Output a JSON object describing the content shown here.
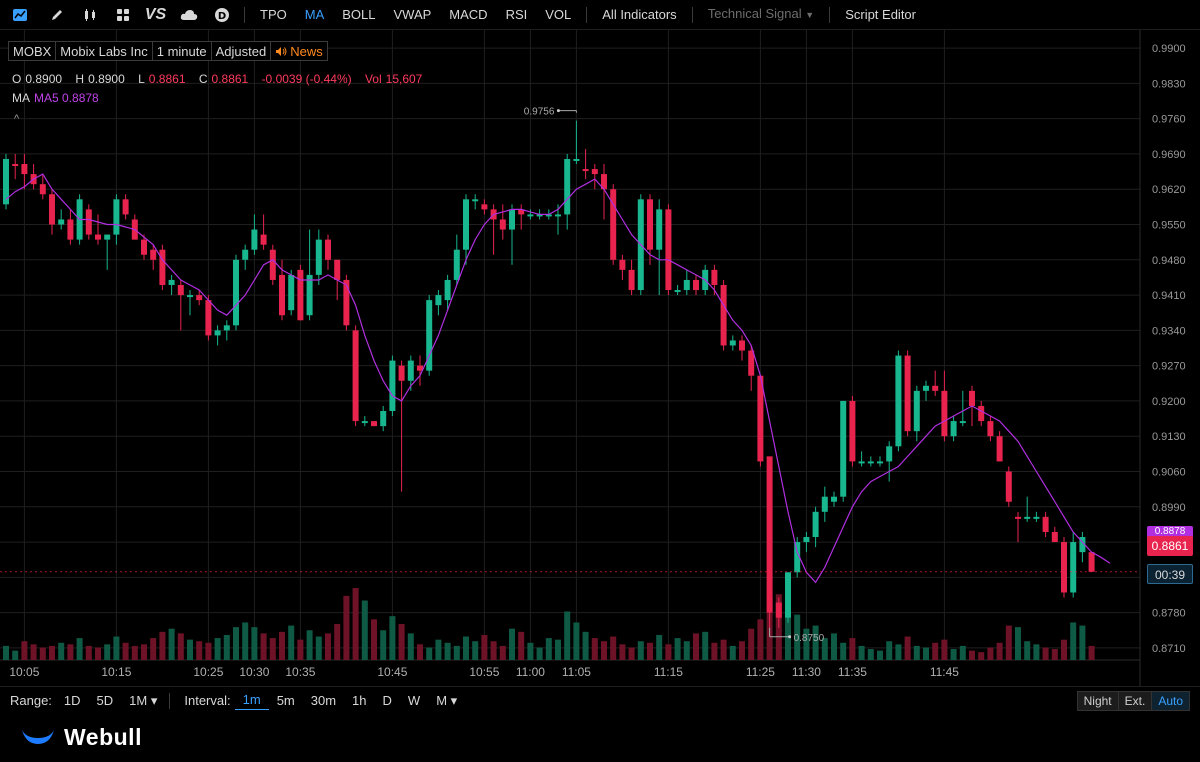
{
  "toolbar": {
    "icons": [
      "chart-type-icon",
      "draw-pen-icon",
      "candles-icon",
      "layout-grid-icon",
      "compare-vs-icon",
      "cloud-icon",
      "dollar-icon"
    ],
    "vs_label": "VS",
    "indicators": [
      "TPO",
      "MA",
      "BOLL",
      "VWAP",
      "MACD",
      "RSI",
      "VOL"
    ],
    "active_indicator": "MA",
    "all_indicators": "All Indicators",
    "technical_signal": "Technical Signal",
    "script_editor": "Script Editor"
  },
  "legend": {
    "symbol": "MOBX",
    "company": "Mobix Labs Inc",
    "interval": "1 minute",
    "adjust": "Adjusted",
    "news": "News",
    "o_label": "O",
    "o_value": "0.8900",
    "h_label": "H",
    "h_value": "0.8900",
    "l_label": "L",
    "l_value": "0.8861",
    "c_label": "C",
    "c_value": "0.8861",
    "change": "-0.0039 (-0.44%)",
    "vol_label": "Vol",
    "vol_value": "15,607",
    "ma_label": "MA",
    "ma5": "MA5 0.8878",
    "collapse": "^"
  },
  "axis": {
    "price_ticks": [
      "0.9900",
      "0.9830",
      "0.9760",
      "0.9690",
      "0.9620",
      "0.9550",
      "0.9480",
      "0.9410",
      "0.9340",
      "0.9270",
      "0.9200",
      "0.9130",
      "0.9060",
      "0.8990",
      "0.8920",
      "0.8850",
      "0.8780",
      "0.8710"
    ],
    "time_ticks": [
      "10:05",
      "10:15",
      "10:25",
      "10:30",
      "10:35",
      "10:45",
      "10:55",
      "11:00",
      "11:05",
      "11:15",
      "11:25",
      "11:30",
      "11:35",
      "11:45"
    ],
    "last_price": "0.8861",
    "ma_price": "0.8878",
    "countdown": "00:39",
    "high_label": "0.9756",
    "low_label": "0.8750"
  },
  "colors": {
    "up": "#18b78f",
    "down": "#e8234e",
    "ma5": "#b12fe0",
    "accent": "#3aa0ff",
    "grid": "#1f1f1f"
  },
  "chart_data": {
    "type": "candlestick",
    "interval": "1 minute",
    "start_time": "10:03",
    "ylim": [
      0.869,
      0.992
    ],
    "candles": [
      {
        "o": 0.959,
        "h": 0.969,
        "l": 0.958,
        "c": 0.968,
        "v": 9
      },
      {
        "o": 0.967,
        "h": 0.969,
        "l": 0.964,
        "c": 0.967,
        "v": 6
      },
      {
        "o": 0.967,
        "h": 0.969,
        "l": 0.962,
        "c": 0.965,
        "v": 12
      },
      {
        "o": 0.965,
        "h": 0.967,
        "l": 0.962,
        "c": 0.963,
        "v": 10
      },
      {
        "o": 0.963,
        "h": 0.965,
        "l": 0.96,
        "c": 0.961,
        "v": 8
      },
      {
        "o": 0.961,
        "h": 0.962,
        "l": 0.953,
        "c": 0.955,
        "v": 9
      },
      {
        "o": 0.955,
        "h": 0.958,
        "l": 0.954,
        "c": 0.956,
        "v": 11
      },
      {
        "o": 0.956,
        "h": 0.958,
        "l": 0.951,
        "c": 0.952,
        "v": 10
      },
      {
        "o": 0.952,
        "h": 0.961,
        "l": 0.951,
        "c": 0.96,
        "v": 14
      },
      {
        "o": 0.958,
        "h": 0.959,
        "l": 0.952,
        "c": 0.953,
        "v": 9
      },
      {
        "o": 0.953,
        "h": 0.957,
        "l": 0.951,
        "c": 0.952,
        "v": 8
      },
      {
        "o": 0.952,
        "h": 0.953,
        "l": 0.946,
        "c": 0.953,
        "v": 10
      },
      {
        "o": 0.953,
        "h": 0.961,
        "l": 0.951,
        "c": 0.96,
        "v": 15
      },
      {
        "o": 0.96,
        "h": 0.961,
        "l": 0.956,
        "c": 0.957,
        "v": 11
      },
      {
        "o": 0.956,
        "h": 0.957,
        "l": 0.952,
        "c": 0.952,
        "v": 9
      },
      {
        "o": 0.952,
        "h": 0.953,
        "l": 0.948,
        "c": 0.949,
        "v": 10
      },
      {
        "o": 0.95,
        "h": 0.951,
        "l": 0.946,
        "c": 0.948,
        "v": 14
      },
      {
        "o": 0.95,
        "h": 0.951,
        "l": 0.942,
        "c": 0.943,
        "v": 18
      },
      {
        "o": 0.943,
        "h": 0.945,
        "l": 0.941,
        "c": 0.944,
        "v": 20
      },
      {
        "o": 0.943,
        "h": 0.944,
        "l": 0.934,
        "c": 0.941,
        "v": 17
      },
      {
        "o": 0.941,
        "h": 0.942,
        "l": 0.937,
        "c": 0.941,
        "v": 13
      },
      {
        "o": 0.941,
        "h": 0.942,
        "l": 0.939,
        "c": 0.94,
        "v": 12
      },
      {
        "o": 0.94,
        "h": 0.941,
        "l": 0.932,
        "c": 0.933,
        "v": 11
      },
      {
        "o": 0.933,
        "h": 0.935,
        "l": 0.931,
        "c": 0.934,
        "v": 14
      },
      {
        "o": 0.934,
        "h": 0.936,
        "l": 0.932,
        "c": 0.935,
        "v": 16
      },
      {
        "o": 0.935,
        "h": 0.949,
        "l": 0.934,
        "c": 0.948,
        "v": 21
      },
      {
        "o": 0.948,
        "h": 0.951,
        "l": 0.946,
        "c": 0.95,
        "v": 24
      },
      {
        "o": 0.95,
        "h": 0.957,
        "l": 0.949,
        "c": 0.954,
        "v": 21
      },
      {
        "o": 0.953,
        "h": 0.957,
        "l": 0.95,
        "c": 0.951,
        "v": 17
      },
      {
        "o": 0.95,
        "h": 0.951,
        "l": 0.943,
        "c": 0.944,
        "v": 14
      },
      {
        "o": 0.945,
        "h": 0.948,
        "l": 0.936,
        "c": 0.937,
        "v": 18
      },
      {
        "o": 0.938,
        "h": 0.946,
        "l": 0.937,
        "c": 0.945,
        "v": 22
      },
      {
        "o": 0.946,
        "h": 0.947,
        "l": 0.936,
        "c": 0.936,
        "v": 13
      },
      {
        "o": 0.937,
        "h": 0.954,
        "l": 0.936,
        "c": 0.945,
        "v": 19
      },
      {
        "o": 0.945,
        "h": 0.954,
        "l": 0.943,
        "c": 0.952,
        "v": 15
      },
      {
        "o": 0.952,
        "h": 0.953,
        "l": 0.946,
        "c": 0.948,
        "v": 17
      },
      {
        "o": 0.948,
        "h": 0.948,
        "l": 0.94,
        "c": 0.944,
        "v": 23
      },
      {
        "o": 0.944,
        "h": 0.945,
        "l": 0.934,
        "c": 0.935,
        "v": 41
      },
      {
        "o": 0.934,
        "h": 0.935,
        "l": 0.915,
        "c": 0.916,
        "v": 46
      },
      {
        "o": 0.916,
        "h": 0.917,
        "l": 0.915,
        "c": 0.916,
        "v": 38
      },
      {
        "o": 0.916,
        "h": 0.916,
        "l": 0.915,
        "c": 0.915,
        "v": 26
      },
      {
        "o": 0.915,
        "h": 0.919,
        "l": 0.914,
        "c": 0.918,
        "v": 19
      },
      {
        "o": 0.918,
        "h": 0.929,
        "l": 0.917,
        "c": 0.928,
        "v": 28
      },
      {
        "o": 0.927,
        "h": 0.928,
        "l": 0.902,
        "c": 0.924,
        "v": 23
      },
      {
        "o": 0.924,
        "h": 0.929,
        "l": 0.922,
        "c": 0.928,
        "v": 17
      },
      {
        "o": 0.927,
        "h": 0.929,
        "l": 0.923,
        "c": 0.926,
        "v": 10
      },
      {
        "o": 0.926,
        "h": 0.941,
        "l": 0.925,
        "c": 0.94,
        "v": 8
      },
      {
        "o": 0.939,
        "h": 0.942,
        "l": 0.937,
        "c": 0.941,
        "v": 13
      },
      {
        "o": 0.94,
        "h": 0.945,
        "l": 0.938,
        "c": 0.944,
        "v": 11
      },
      {
        "o": 0.944,
        "h": 0.953,
        "l": 0.943,
        "c": 0.95,
        "v": 9
      },
      {
        "o": 0.95,
        "h": 0.961,
        "l": 0.947,
        "c": 0.96,
        "v": 15
      },
      {
        "o": 0.96,
        "h": 0.961,
        "l": 0.958,
        "c": 0.96,
        "v": 12
      },
      {
        "o": 0.959,
        "h": 0.96,
        "l": 0.957,
        "c": 0.958,
        "v": 16
      },
      {
        "o": 0.958,
        "h": 0.959,
        "l": 0.949,
        "c": 0.956,
        "v": 12
      },
      {
        "o": 0.956,
        "h": 0.959,
        "l": 0.952,
        "c": 0.954,
        "v": 9
      },
      {
        "o": 0.954,
        "h": 0.959,
        "l": 0.947,
        "c": 0.958,
        "v": 20
      },
      {
        "o": 0.958,
        "h": 0.959,
        "l": 0.954,
        "c": 0.957,
        "v": 18
      },
      {
        "o": 0.957,
        "h": 0.958,
        "l": 0.956,
        "c": 0.957,
        "v": 11
      },
      {
        "o": 0.957,
        "h": 0.958,
        "l": 0.956,
        "c": 0.957,
        "v": 8
      },
      {
        "o": 0.957,
        "h": 0.958,
        "l": 0.956,
        "c": 0.957,
        "v": 14
      },
      {
        "o": 0.957,
        "h": 0.959,
        "l": 0.953,
        "c": 0.957,
        "v": 13
      },
      {
        "o": 0.957,
        "h": 0.969,
        "l": 0.954,
        "c": 0.968,
        "v": 31
      },
      {
        "o": 0.968,
        "h": 0.9756,
        "l": 0.967,
        "c": 0.968,
        "v": 24
      },
      {
        "o": 0.966,
        "h": 0.97,
        "l": 0.964,
        "c": 0.966,
        "v": 18
      },
      {
        "o": 0.966,
        "h": 0.967,
        "l": 0.962,
        "c": 0.965,
        "v": 14
      },
      {
        "o": 0.965,
        "h": 0.967,
        "l": 0.956,
        "c": 0.962,
        "v": 12
      },
      {
        "o": 0.962,
        "h": 0.963,
        "l": 0.947,
        "c": 0.948,
        "v": 15
      },
      {
        "o": 0.948,
        "h": 0.949,
        "l": 0.944,
        "c": 0.946,
        "v": 10
      },
      {
        "o": 0.946,
        "h": 0.948,
        "l": 0.941,
        "c": 0.942,
        "v": 8
      },
      {
        "o": 0.942,
        "h": 0.961,
        "l": 0.941,
        "c": 0.96,
        "v": 12
      },
      {
        "o": 0.96,
        "h": 0.961,
        "l": 0.947,
        "c": 0.95,
        "v": 11
      },
      {
        "o": 0.95,
        "h": 0.96,
        "l": 0.941,
        "c": 0.958,
        "v": 16
      },
      {
        "o": 0.958,
        "h": 0.959,
        "l": 0.941,
        "c": 0.942,
        "v": 10
      },
      {
        "o": 0.942,
        "h": 0.943,
        "l": 0.941,
        "c": 0.942,
        "v": 14
      },
      {
        "o": 0.942,
        "h": 0.946,
        "l": 0.941,
        "c": 0.944,
        "v": 12
      },
      {
        "o": 0.944,
        "h": 0.945,
        "l": 0.941,
        "c": 0.942,
        "v": 17
      },
      {
        "o": 0.942,
        "h": 0.947,
        "l": 0.941,
        "c": 0.946,
        "v": 18
      },
      {
        "o": 0.946,
        "h": 0.947,
        "l": 0.941,
        "c": 0.943,
        "v": 11
      },
      {
        "o": 0.943,
        "h": 0.944,
        "l": 0.93,
        "c": 0.931,
        "v": 13
      },
      {
        "o": 0.931,
        "h": 0.933,
        "l": 0.93,
        "c": 0.932,
        "v": 9
      },
      {
        "o": 0.932,
        "h": 0.933,
        "l": 0.928,
        "c": 0.93,
        "v": 12
      },
      {
        "o": 0.93,
        "h": 0.931,
        "l": 0.922,
        "c": 0.925,
        "v": 20
      },
      {
        "o": 0.925,
        "h": 0.925,
        "l": 0.907,
        "c": 0.908,
        "v": 26
      },
      {
        "o": 0.909,
        "h": 0.909,
        "l": 0.875,
        "c": 0.878,
        "v": 40
      },
      {
        "o": 0.88,
        "h": 0.881,
        "l": 0.875,
        "c": 0.877,
        "v": 42
      },
      {
        "o": 0.877,
        "h": 0.886,
        "l": 0.876,
        "c": 0.886,
        "v": 32
      },
      {
        "o": 0.886,
        "h": 0.893,
        "l": 0.885,
        "c": 0.892,
        "v": 29
      },
      {
        "o": 0.892,
        "h": 0.894,
        "l": 0.89,
        "c": 0.893,
        "v": 20
      },
      {
        "o": 0.893,
        "h": 0.899,
        "l": 0.891,
        "c": 0.898,
        "v": 22
      },
      {
        "o": 0.898,
        "h": 0.903,
        "l": 0.896,
        "c": 0.901,
        "v": 14
      },
      {
        "o": 0.9,
        "h": 0.902,
        "l": 0.899,
        "c": 0.901,
        "v": 17
      },
      {
        "o": 0.901,
        "h": 0.92,
        "l": 0.9,
        "c": 0.92,
        "v": 11
      },
      {
        "o": 0.92,
        "h": 0.921,
        "l": 0.907,
        "c": 0.908,
        "v": 14
      },
      {
        "o": 0.908,
        "h": 0.91,
        "l": 0.907,
        "c": 0.908,
        "v": 9
      },
      {
        "o": 0.908,
        "h": 0.909,
        "l": 0.907,
        "c": 0.908,
        "v": 7
      },
      {
        "o": 0.908,
        "h": 0.909,
        "l": 0.907,
        "c": 0.908,
        "v": 6
      },
      {
        "o": 0.908,
        "h": 0.912,
        "l": 0.904,
        "c": 0.911,
        "v": 12
      },
      {
        "o": 0.911,
        "h": 0.93,
        "l": 0.91,
        "c": 0.929,
        "v": 10
      },
      {
        "o": 0.929,
        "h": 0.93,
        "l": 0.913,
        "c": 0.914,
        "v": 15
      },
      {
        "o": 0.914,
        "h": 0.923,
        "l": 0.912,
        "c": 0.922,
        "v": 9
      },
      {
        "o": 0.922,
        "h": 0.924,
        "l": 0.92,
        "c": 0.923,
        "v": 8
      },
      {
        "o": 0.923,
        "h": 0.926,
        "l": 0.921,
        "c": 0.922,
        "v": 11
      },
      {
        "o": 0.922,
        "h": 0.926,
        "l": 0.912,
        "c": 0.913,
        "v": 13
      },
      {
        "o": 0.913,
        "h": 0.917,
        "l": 0.912,
        "c": 0.916,
        "v": 7
      },
      {
        "o": 0.916,
        "h": 0.922,
        "l": 0.915,
        "c": 0.916,
        "v": 9
      },
      {
        "o": 0.922,
        "h": 0.923,
        "l": 0.915,
        "c": 0.919,
        "v": 6
      },
      {
        "o": 0.919,
        "h": 0.92,
        "l": 0.915,
        "c": 0.916,
        "v": 5
      },
      {
        "o": 0.916,
        "h": 0.917,
        "l": 0.912,
        "c": 0.913,
        "v": 8
      },
      {
        "o": 0.913,
        "h": 0.914,
        "l": 0.908,
        "c": 0.908,
        "v": 11
      },
      {
        "o": 0.906,
        "h": 0.907,
        "l": 0.899,
        "c": 0.9,
        "v": 22
      },
      {
        "o": 0.897,
        "h": 0.898,
        "l": 0.892,
        "c": 0.897,
        "v": 21
      },
      {
        "o": 0.897,
        "h": 0.901,
        "l": 0.896,
        "c": 0.897,
        "v": 12
      },
      {
        "o": 0.897,
        "h": 0.898,
        "l": 0.896,
        "c": 0.897,
        "v": 10
      },
      {
        "o": 0.897,
        "h": 0.898,
        "l": 0.893,
        "c": 0.894,
        "v": 8
      },
      {
        "o": 0.894,
        "h": 0.895,
        "l": 0.892,
        "c": 0.892,
        "v": 7
      },
      {
        "o": 0.892,
        "h": 0.893,
        "l": 0.881,
        "c": 0.882,
        "v": 13
      },
      {
        "o": 0.882,
        "h": 0.894,
        "l": 0.881,
        "c": 0.892,
        "v": 24
      },
      {
        "o": 0.89,
        "h": 0.894,
        "l": 0.888,
        "c": 0.893,
        "v": 22
      },
      {
        "o": 0.89,
        "h": 0.89,
        "l": 0.8861,
        "c": 0.8861,
        "v": 9
      }
    ],
    "ma5": [
      0.96,
      0.9615,
      0.9625,
      0.964,
      0.965,
      0.962,
      0.96,
      0.958,
      0.956,
      0.956,
      0.9555,
      0.955,
      0.955,
      0.9545,
      0.954,
      0.9525,
      0.951,
      0.948,
      0.946,
      0.944,
      0.943,
      0.942,
      0.94,
      0.938,
      0.937,
      0.939,
      0.941,
      0.944,
      0.947,
      0.948,
      0.946,
      0.945,
      0.944,
      0.944,
      0.944,
      0.945,
      0.944,
      0.943,
      0.939,
      0.933,
      0.928,
      0.924,
      0.921,
      0.92,
      0.923,
      0.925,
      0.929,
      0.933,
      0.938,
      0.943,
      0.948,
      0.952,
      0.955,
      0.957,
      0.9575,
      0.958,
      0.958,
      0.9575,
      0.957,
      0.957,
      0.958,
      0.96,
      0.962,
      0.963,
      0.964,
      0.962,
      0.959,
      0.956,
      0.953,
      0.951,
      0.949,
      0.948,
      0.948,
      0.947,
      0.946,
      0.945,
      0.944,
      0.942,
      0.939,
      0.936,
      0.934,
      0.931,
      0.925,
      0.916,
      0.907,
      0.898,
      0.89,
      0.886,
      0.884,
      0.887,
      0.891,
      0.895,
      0.899,
      0.902,
      0.904,
      0.905,
      0.906,
      0.907,
      0.909,
      0.911,
      0.913,
      0.915,
      0.916,
      0.917,
      0.918,
      0.919,
      0.918,
      0.917,
      0.916,
      0.914,
      0.912,
      0.909,
      0.906,
      0.903,
      0.9,
      0.897,
      0.894,
      0.892,
      0.89,
      0.889,
      0.8878
    ]
  },
  "rangebar": {
    "range_label": "Range:",
    "ranges": [
      "1D",
      "5D",
      "1M ▾"
    ],
    "interval_label": "Interval:",
    "intervals": [
      "1m",
      "5m",
      "30m",
      "1h",
      "D",
      "W",
      "M ▾"
    ],
    "active_interval": "1m",
    "sessions": [
      "Night",
      "Ext.",
      "Auto"
    ],
    "active_session": "Auto"
  },
  "brand": {
    "name": "Webull"
  }
}
